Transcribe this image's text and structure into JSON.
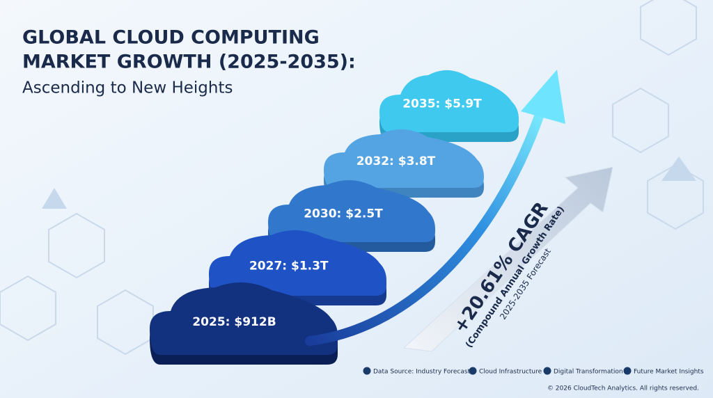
{
  "header": {
    "title_line1": "GLOBAL CLOUD COMPUTING",
    "title_line2": "MARKET GROWTH (2025-2035):",
    "subtitle": "Ascending to New Heights"
  },
  "steps": [
    {
      "label": "2025: $912B"
    },
    {
      "label": "2027: $1.3T"
    },
    {
      "label": "2030: $2.5T"
    },
    {
      "label": "2032: $3.8T"
    },
    {
      "label": "2035: $5.9T"
    }
  ],
  "cagr": {
    "value": "+20.61% CAGR",
    "caption": "(Compound Annual Growth Rate)",
    "period": "2025-2035 Forecast"
  },
  "footer": {
    "items": [
      "Data Source: Industry Forecasts",
      "Cloud Infrastructure",
      "Digital Transformation",
      "Future Market Insights"
    ],
    "copyright": "© 2026 CloudTech Analytics. All rights reserved."
  }
}
